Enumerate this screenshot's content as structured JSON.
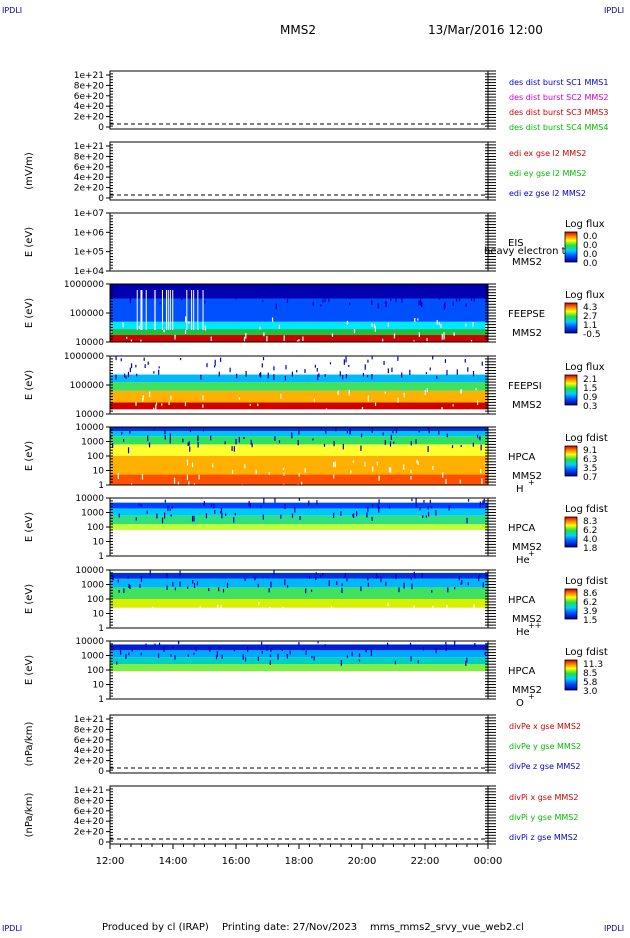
{
  "header": {
    "corner_tl": "IPDLI",
    "corner_tr": "IPDLI",
    "corner_bl": "IPDLI",
    "corner_br": "IPDLI",
    "title": "MMS2",
    "datetime": "13/Mar/2016 12:00"
  },
  "footer": {
    "produced_by": "Produced by cl (IRAP)",
    "printing_date": "Printing date: 27/Nov/2023",
    "filename": "mms_mms2_srvy_vue_web2.cl"
  },
  "chart_data": {
    "type": "heatmap",
    "x_ticks": [
      "12:00",
      "14:00",
      "16:00",
      "18:00",
      "20:00",
      "22:00",
      "00:00"
    ],
    "panels": [
      {
        "id": "des-dist",
        "kind": "line",
        "ylabel": "",
        "y_ticks": [
          "1e+21",
          "8e+20",
          "6e+20",
          "4e+20",
          "2e+20",
          "0"
        ],
        "legend": [
          {
            "text": "des dist burst SC1 MMS1",
            "color": "#0000cc"
          },
          {
            "text": "des dist burst SC2 MMS2",
            "color": "#cc00cc"
          },
          {
            "text": "des dist burst SC3 MMS3",
            "color": "#cc0000"
          },
          {
            "text": "des dist burst SC4 MMS4",
            "color": "#00bb00"
          }
        ]
      },
      {
        "id": "edi",
        "kind": "line",
        "ylabel": "(mV/m)",
        "y_ticks": [
          "1e+21",
          "8e+20",
          "6e+20",
          "4e+20",
          "2e+20",
          "0"
        ],
        "legend": [
          {
            "text": "edi ex gse l2 MMS2",
            "color": "#cc0000"
          },
          {
            "text": "edi ey gse l2 MMS2",
            "color": "#00bb00"
          },
          {
            "text": "edi ez gse l2 MMS2",
            "color": "#0000cc"
          }
        ]
      },
      {
        "id": "eis",
        "kind": "spectrogram",
        "ylabel": "E (eV)",
        "y_ticks": [
          "1e+07",
          "1e+06",
          "1e+05",
          "1e+04"
        ],
        "label_lines": [
          "EIS",
          "MMS2"
        ],
        "overlay_text": "heavy electron to",
        "colorbar_title": "Log flux",
        "colorbar_ticks": [
          "0.0",
          "0.0",
          "0.0",
          "0.0"
        ]
      },
      {
        "id": "feepse",
        "kind": "spectrogram",
        "ylabel": "E (eV)",
        "y_ticks": [
          "1000000",
          "100000",
          "10000"
        ],
        "label_lines": [
          "FEEPSE",
          "MMS2"
        ],
        "colorbar_title": "Log flux",
        "colorbar_ticks": [
          "4.3",
          "2.7",
          "1.1",
          "-0.5"
        ]
      },
      {
        "id": "feepsi",
        "kind": "spectrogram",
        "ylabel": "E (eV)",
        "y_ticks": [
          "1000000",
          "100000",
          "10000"
        ],
        "label_lines": [
          "FEEPSI",
          "MMS2"
        ],
        "colorbar_title": "Log flux",
        "colorbar_ticks": [
          "2.1",
          "1.5",
          "0.9",
          "0.3"
        ]
      },
      {
        "id": "hpca-h",
        "kind": "spectrogram",
        "ylabel": "E (eV)",
        "y_ticks": [
          "10000",
          "1000",
          "100",
          "10",
          "1"
        ],
        "label_lines": [
          "HPCA",
          "MMS2"
        ],
        "species": "H",
        "species_sup": "+",
        "colorbar_title": "Log fdist",
        "colorbar_ticks": [
          "9.1",
          "6.3",
          "3.5",
          "0.7"
        ]
      },
      {
        "id": "hpca-he1",
        "kind": "spectrogram",
        "ylabel": "E (eV)",
        "y_ticks": [
          "10000",
          "1000",
          "100",
          "10",
          "1"
        ],
        "label_lines": [
          "HPCA",
          "MMS2"
        ],
        "species": "He",
        "species_sup": "+",
        "colorbar_title": "Log fdist",
        "colorbar_ticks": [
          "8.3",
          "6.2",
          "4.0",
          "1.8"
        ]
      },
      {
        "id": "hpca-he2",
        "kind": "spectrogram",
        "ylabel": "E (eV)",
        "y_ticks": [
          "10000",
          "1000",
          "100",
          "10",
          "1"
        ],
        "label_lines": [
          "HPCA",
          "MMS2"
        ],
        "species": "He",
        "species_sup": "++",
        "colorbar_title": "Log fdist",
        "colorbar_ticks": [
          "8.6",
          "6.2",
          "3.9",
          "1.5"
        ]
      },
      {
        "id": "hpca-o",
        "kind": "spectrogram",
        "ylabel": "E (eV)",
        "y_ticks": [
          "10000",
          "1000",
          "100",
          "10",
          "1"
        ],
        "label_lines": [
          "HPCA",
          "MMS2"
        ],
        "species": "O",
        "species_sup": "+",
        "colorbar_title": "Log fdist",
        "colorbar_ticks": [
          "11.3",
          "8.5",
          "5.8",
          "3.0"
        ]
      },
      {
        "id": "divpe",
        "kind": "line",
        "ylabel": "(nPa/km)",
        "y_ticks": [
          "1e+21",
          "8e+20",
          "6e+20",
          "4e+20",
          "2e+20",
          "0"
        ],
        "legend": [
          {
            "text": "divPe x gse MMS2",
            "color": "#cc0000"
          },
          {
            "text": "divPe y gse MMS2",
            "color": "#00bb00"
          },
          {
            "text": "divPe z gse MMS2",
            "color": "#0000cc"
          }
        ]
      },
      {
        "id": "divpi",
        "kind": "line",
        "ylabel": "(nPa/km)",
        "y_ticks": [
          "1e+21",
          "8e+20",
          "6e+20",
          "4e+20",
          "2e+20",
          "0"
        ],
        "legend": [
          {
            "text": "divPi x gse MMS2",
            "color": "#cc0000"
          },
          {
            "text": "divPi y gse MMS2",
            "color": "#00bb00"
          },
          {
            "text": "divPi z gse MMS2",
            "color": "#0000cc"
          }
        ]
      }
    ]
  }
}
